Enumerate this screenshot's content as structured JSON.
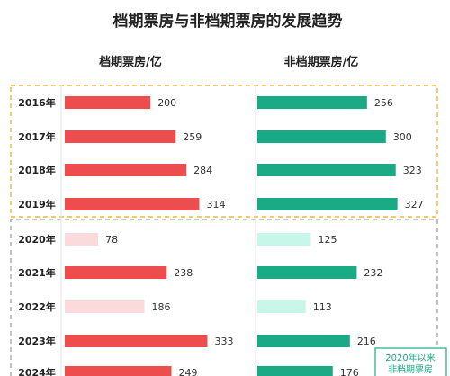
{
  "chart_data": {
    "type": "bar",
    "title": "档期票房与非档期票房的发展趋势",
    "categories": [
      "2016年",
      "2017年",
      "2018年",
      "2019年",
      "2020年",
      "2021年",
      "2022年",
      "2023年",
      "2024年"
    ],
    "series": [
      {
        "name": "档期票房/亿",
        "values": [
          200,
          259,
          284,
          314,
          78,
          238,
          186,
          333,
          249
        ],
        "color": "#ee4d4d",
        "light_color": "#fadada"
      },
      {
        "name": "非档期票房/亿",
        "values": [
          256,
          300,
          323,
          327,
          125,
          232,
          113,
          216,
          176
        ],
        "color": "#1aaa86",
        "light_color": "#c7f7e8"
      }
    ],
    "light_categories": [
      "2020年",
      "2022年"
    ],
    "groups": [
      {
        "categories": [
          "2016年",
          "2017年",
          "2018年",
          "2019年"
        ],
        "border_color": "#f0b73a",
        "style": "dashed"
      },
      {
        "categories": [
          "2020年",
          "2021年",
          "2022年",
          "2023年",
          "2024年"
        ],
        "border_color": "#9a9a9a",
        "style": "dashed"
      }
    ],
    "annotation": {
      "lines": [
        "2020年以来",
        "非档期票房"
      ],
      "border_color": "#1aaa86"
    }
  }
}
